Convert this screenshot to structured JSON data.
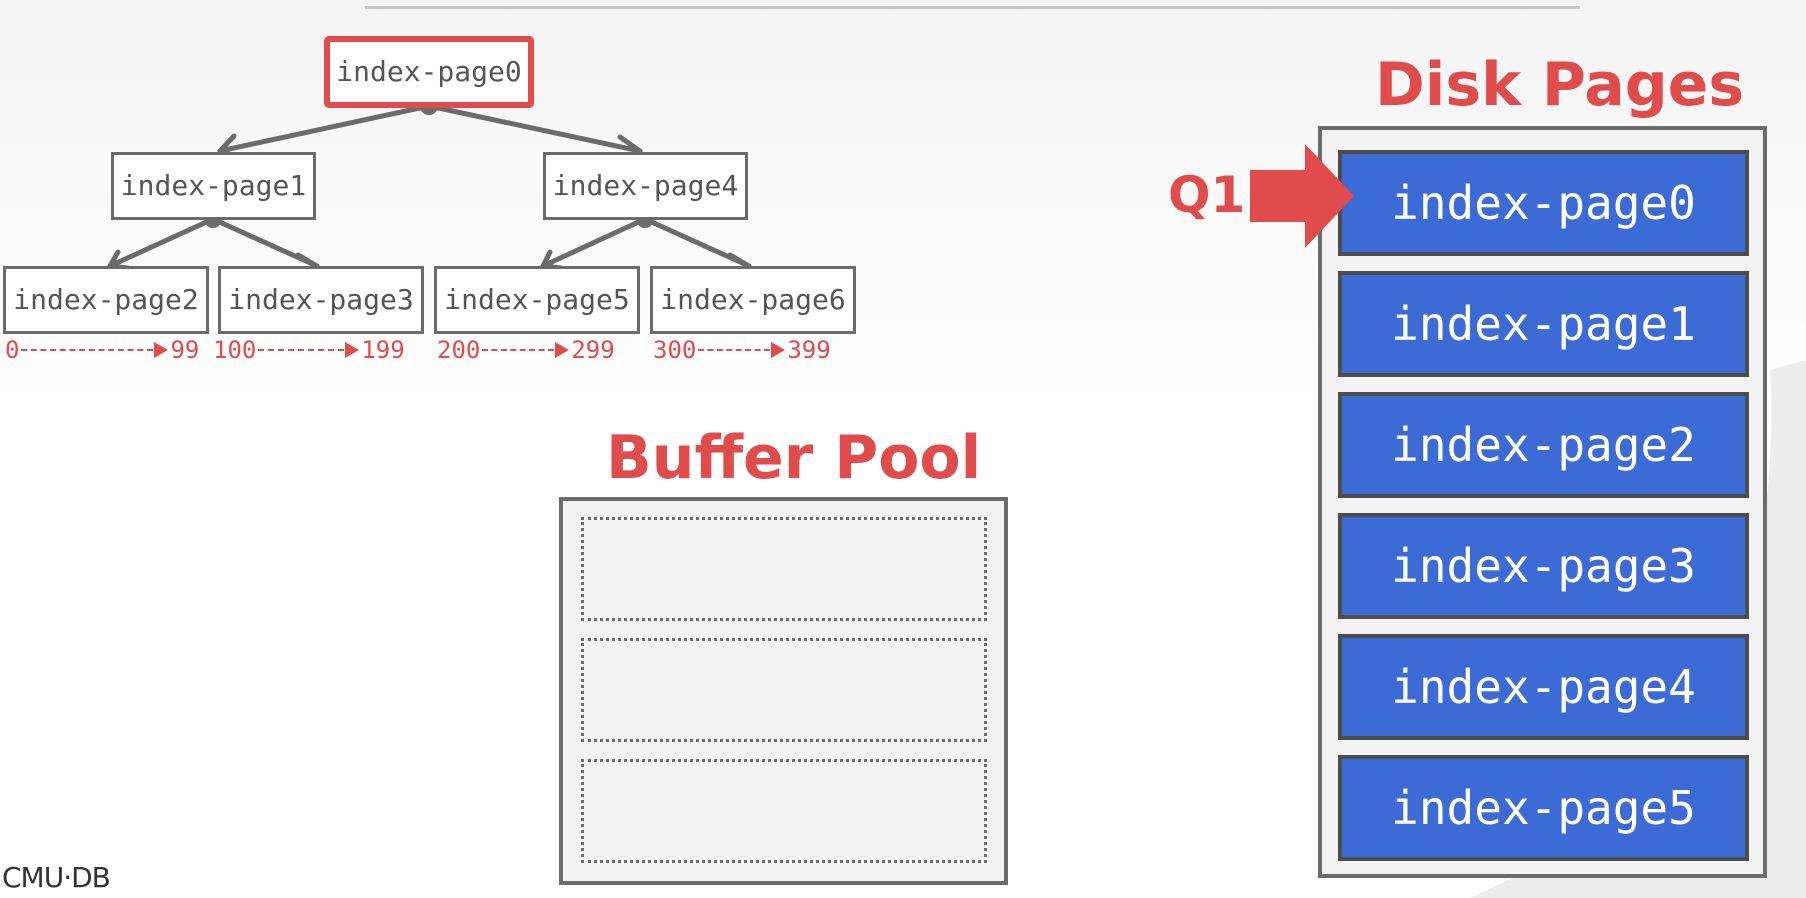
{
  "tree": {
    "root": "index-page0",
    "level1": [
      "index-page1",
      "index-page4"
    ],
    "leaves": [
      "index-page2",
      "index-page3",
      "index-page5",
      "index-page6"
    ],
    "ranges": [
      {
        "start": "0",
        "end": "99"
      },
      {
        "start": "100",
        "end": "199"
      },
      {
        "start": "200",
        "end": "299"
      },
      {
        "start": "300",
        "end": "399"
      }
    ],
    "highlight_color": "#e04b4b"
  },
  "buffer_pool": {
    "title": "Buffer Pool",
    "slot_count": 3
  },
  "disk": {
    "title": "Disk Pages",
    "pages": [
      "index-page0",
      "index-page1",
      "index-page2",
      "index-page3",
      "index-page4",
      "index-page5"
    ],
    "page_color": "#3d6bd6"
  },
  "query": {
    "label": "Q1",
    "target_page": "index-page0"
  },
  "footer": {
    "logo": "CMU·DB"
  }
}
